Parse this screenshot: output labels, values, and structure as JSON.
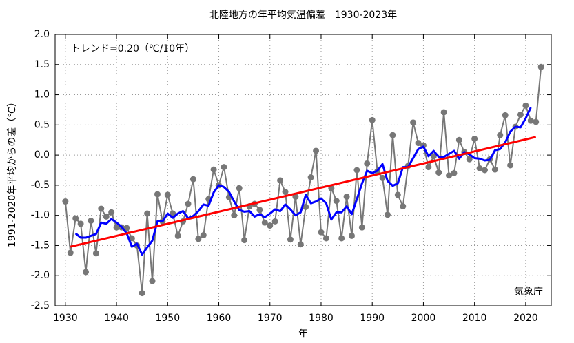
{
  "chart_data": {
    "type": "line",
    "title": "北陸地方の年平均気温偏差　1930-2023年",
    "annotation": "トレンド=0.20（℃/10年）",
    "source": "気象庁",
    "xlabel": "年",
    "ylabel": "1991-2020年平均からの差（℃）",
    "x": [
      1930,
      1931,
      1932,
      1933,
      1934,
      1935,
      1936,
      1937,
      1938,
      1939,
      1940,
      1941,
      1942,
      1943,
      1944,
      1945,
      1946,
      1947,
      1948,
      1949,
      1950,
      1951,
      1952,
      1953,
      1954,
      1955,
      1956,
      1957,
      1958,
      1959,
      1960,
      1961,
      1962,
      1963,
      1964,
      1965,
      1966,
      1967,
      1968,
      1969,
      1970,
      1971,
      1972,
      1973,
      1974,
      1975,
      1976,
      1977,
      1978,
      1979,
      1980,
      1981,
      1982,
      1983,
      1984,
      1985,
      1986,
      1987,
      1988,
      1989,
      1990,
      1991,
      1992,
      1993,
      1994,
      1995,
      1996,
      1997,
      1998,
      1999,
      2000,
      2001,
      2002,
      2003,
      2004,
      2005,
      2006,
      2007,
      2008,
      2009,
      2010,
      2011,
      2012,
      2013,
      2014,
      2015,
      2016,
      2017,
      2018,
      2019,
      2020,
      2021,
      2022,
      2023
    ],
    "series": [
      {
        "color": "#777777",
        "marker": true,
        "values": [
          -0.77,
          -1.62,
          -1.05,
          -1.14,
          -1.94,
          -1.09,
          -1.63,
          -0.89,
          -1.02,
          -0.95,
          -1.2,
          -1.2,
          -1.21,
          -1.38,
          -1.5,
          -2.29,
          -0.97,
          -2.09,
          -0.65,
          -1.1,
          -0.66,
          -0.97,
          -1.34,
          -1.1,
          -0.81,
          -0.4,
          -1.39,
          -1.33,
          -0.73,
          -0.24,
          -0.5,
          -0.2,
          -0.7,
          -1.0,
          -0.55,
          -1.41,
          -0.85,
          -0.81,
          -0.91,
          -1.12,
          -1.17,
          -1.1,
          -0.42,
          -0.61,
          -1.4,
          -0.69,
          -1.48,
          -0.86,
          -0.37,
          0.07,
          -1.28,
          -1.38,
          -0.55,
          -0.76,
          -1.38,
          -0.69,
          -1.34,
          -0.25,
          -1.2,
          -0.14,
          0.58,
          -0.27,
          -0.38,
          -0.99,
          0.33,
          -0.66,
          -0.85,
          -0.18,
          0.54,
          0.2,
          0.16,
          -0.2,
          -0.02,
          -0.29,
          0.71,
          -0.34,
          -0.3,
          0.25,
          0.05,
          -0.07,
          0.27,
          -0.22,
          -0.25,
          -0.07,
          -0.24,
          0.33,
          0.66,
          -0.17,
          0.47,
          0.67,
          0.82,
          0.57,
          0.55,
          1.46
        ]
      },
      {
        "color": "#0000ff",
        "marker": false,
        "width": 3,
        "values": [
          null,
          null,
          -1.3,
          -1.37,
          -1.37,
          -1.34,
          -1.31,
          -1.12,
          -1.14,
          -1.06,
          -1.12,
          -1.19,
          -1.3,
          -1.52,
          -1.47,
          -1.65,
          -1.53,
          -1.42,
          -1.1,
          -1.1,
          -0.97,
          -1.04,
          -0.97,
          -0.93,
          -1.05,
          -1.01,
          -0.93,
          -0.82,
          -0.84,
          -0.62,
          -0.5,
          -0.53,
          -0.61,
          -0.77,
          -0.91,
          -0.94,
          -0.93,
          -1.02,
          -0.98,
          -1.03,
          -0.97,
          -0.9,
          -0.93,
          -0.82,
          -0.9,
          -1.0,
          -0.95,
          -0.66,
          -0.8,
          -0.77,
          -0.72,
          -0.8,
          -1.07,
          -0.95,
          -0.95,
          -0.85,
          -0.98,
          -0.73,
          -0.47,
          -0.26,
          -0.3,
          -0.26,
          -0.15,
          -0.43,
          -0.51,
          -0.47,
          -0.2,
          -0.2,
          -0.05,
          0.1,
          0.14,
          -0.02,
          0.07,
          -0.03,
          -0.03,
          0.02,
          0.07,
          -0.06,
          0.05,
          0.01,
          -0.05,
          -0.06,
          -0.09,
          -0.08,
          0.08,
          0.1,
          0.21,
          0.39,
          0.47,
          0.46,
          0.61,
          0.79,
          null,
          null
        ]
      },
      {
        "color": "#ff0000",
        "marker": false,
        "width": 3,
        "x": [
          1931,
          2022
        ],
        "values": [
          -1.52,
          0.3
        ]
      }
    ],
    "xlim": [
      1928,
      2025
    ],
    "xticks": [
      1930,
      1940,
      1950,
      1960,
      1970,
      1980,
      1990,
      2000,
      2010,
      2020
    ],
    "ylim": [
      -2.5,
      2.0
    ],
    "yticks": [
      {
        "value": 2.0,
        "label": "2.0"
      },
      1.5,
      {
        "value": 1.0,
        "label": "1.0"
      },
      0.5,
      {
        "value": 0.0,
        "label": "0.0"
      },
      -0.5,
      {
        "value": -1.0,
        "label": "-1.0"
      },
      -1.5,
      {
        "value": -2.0,
        "label": "-2.0"
      },
      -2.5
    ],
    "grid": true
  }
}
